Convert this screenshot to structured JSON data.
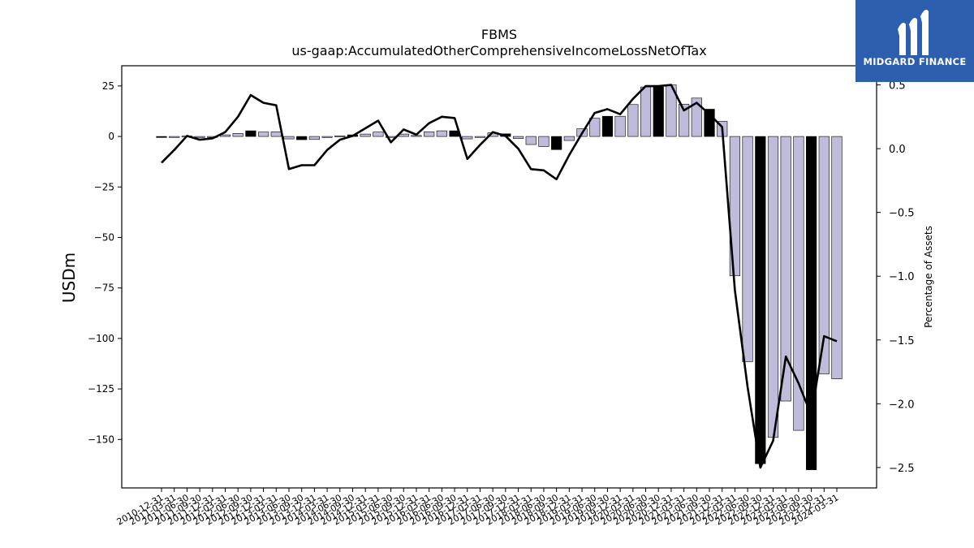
{
  "chart_data": {
    "type": "bar",
    "title": "FBMS",
    "subtitle": "us-gaap:AccumulatedOtherComprehensiveIncomeLossNetOfTax",
    "ylabel": "USDm",
    "y2label": "Percentage of Assets",
    "ylim": [
      -174,
      35
    ],
    "y2lim": [
      -2.66,
      0.65
    ],
    "yticks": [
      25,
      0,
      -25,
      -50,
      -75,
      -100,
      -125,
      -150
    ],
    "y2ticks": [
      0.5,
      0.0,
      -0.5,
      -1.0,
      -1.5,
      -2.0,
      -2.5
    ],
    "categories": [
      "2010-12-31",
      "2011-03-31",
      "2011-06-30",
      "2011-09-30",
      "2011-12-31",
      "2012-03-31",
      "2012-06-30",
      "2012-09-30",
      "2012-12-31",
      "2013-03-31",
      "2013-06-30",
      "2013-09-30",
      "2013-12-31",
      "2014-03-31",
      "2014-06-30",
      "2014-09-30",
      "2014-12-31",
      "2015-03-31",
      "2015-06-30",
      "2015-09-30",
      "2015-12-31",
      "2016-03-31",
      "2016-06-30",
      "2016-09-30",
      "2016-12-31",
      "2017-03-31",
      "2017-06-30",
      "2017-09-30",
      "2017-12-31",
      "2018-03-31",
      "2018-06-30",
      "2018-09-30",
      "2018-12-31",
      "2019-03-31",
      "2019-06-30",
      "2019-09-30",
      "2019-12-31",
      "2020-03-31",
      "2020-06-30",
      "2020-09-30",
      "2020-12-31",
      "2021-03-31",
      "2021-06-30",
      "2021-09-30",
      "2021-12-31",
      "2022-03-31",
      "2022-06-30",
      "2022-09-30",
      "2022-12-31",
      "2023-03-31",
      "2023-06-30",
      "2023-09-30",
      "2023-12-31",
      "2024-03-31"
    ],
    "values": [
      -0.5,
      -0.3,
      0.2,
      -0.2,
      -0.2,
      0.8,
      1.5,
      2.8,
      2.2,
      2.3,
      -1.2,
      -1.6,
      -1.5,
      -0.5,
      0.3,
      0.8,
      1.2,
      2.2,
      -0.3,
      1.2,
      0.5,
      2.3,
      2.8,
      2.8,
      -1.2,
      -0.3,
      1.8,
      1.3,
      -1.0,
      -4.0,
      -5.0,
      -6.5,
      -2.0,
      3.8,
      9.0,
      10.0,
      10.0,
      15.8,
      24.5,
      24.5,
      25.5,
      16.0,
      19.0,
      13.5,
      7.5,
      -69.0,
      -111.5,
      -162.0,
      -149.0,
      -131.0,
      -145.5,
      -165.0,
      -117.5,
      -120.0
    ],
    "highlighted": [
      "2010-12-31",
      "2012-09-30",
      "2013-09-30",
      "2014-09-30",
      "2016-09-30",
      "2017-09-30",
      "2018-09-30",
      "2019-09-30",
      "2020-09-30",
      "2021-09-30",
      "2022-09-30",
      "2023-09-30"
    ],
    "series": [
      {
        "axis": "right",
        "type": "line",
        "values": [
          -0.11,
          -0.01,
          0.1,
          0.07,
          0.08,
          0.13,
          0.25,
          0.42,
          0.36,
          0.34,
          -0.16,
          -0.13,
          -0.13,
          -0.01,
          0.07,
          0.1,
          0.16,
          0.22,
          0.05,
          0.15,
          0.11,
          0.2,
          0.25,
          0.24,
          -0.08,
          0.03,
          0.13,
          0.1,
          0.0,
          -0.16,
          -0.17,
          -0.24,
          -0.05,
          0.12,
          0.28,
          0.31,
          0.27,
          0.39,
          0.49,
          0.49,
          0.5,
          0.3,
          0.36,
          0.27,
          0.17,
          -1.11,
          -1.87,
          -2.5,
          -2.29,
          -1.63,
          -1.84,
          -2.09,
          -1.47,
          -1.51
        ]
      }
    ]
  },
  "logo": {
    "text": "MIDGARD FINANCE",
    "color": "#2d5fae"
  },
  "colors": {
    "bar": "#bfbbdb",
    "bar_highlight": "#000000",
    "line": "#000000"
  }
}
